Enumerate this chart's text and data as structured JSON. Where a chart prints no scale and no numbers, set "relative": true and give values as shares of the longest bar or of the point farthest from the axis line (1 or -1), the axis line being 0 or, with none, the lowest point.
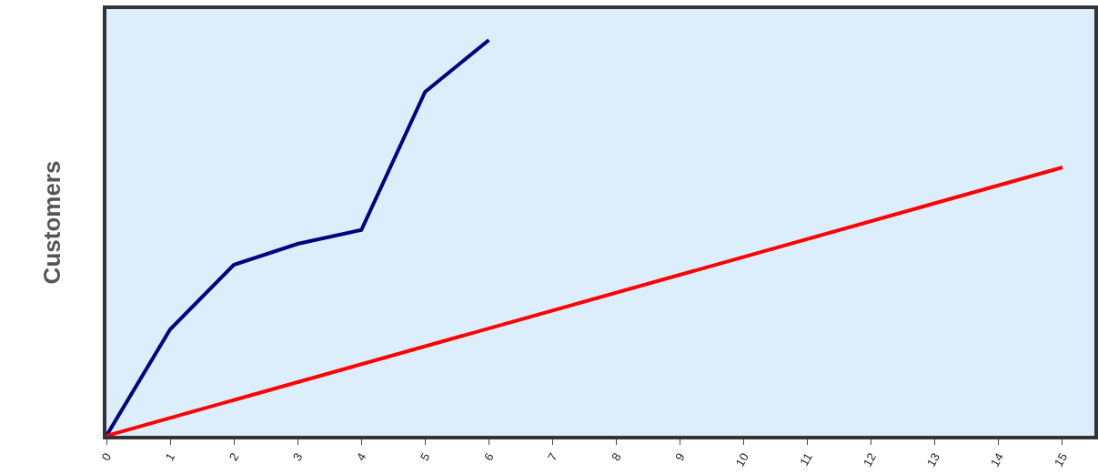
{
  "chart_data": {
    "type": "line",
    "ylabel": "Customers",
    "relative": true,
    "legend": false,
    "grid": false,
    "marker": "none",
    "line_style": "solid",
    "xlim": [
      0,
      15.5
    ],
    "xticks": [
      0,
      1,
      2,
      3,
      4,
      5,
      6,
      7,
      8,
      9,
      10,
      11,
      12,
      13,
      14,
      15
    ],
    "series": [
      {
        "color": "#000080",
        "x": [
          0,
          1,
          2,
          3,
          4,
          5,
          6
        ],
        "values": [
          0,
          0.269,
          0.432,
          0.485,
          0.52,
          0.869,
          1
        ]
      },
      {
        "color": "#ff0000",
        "x": [
          0,
          15
        ],
        "values": [
          0,
          0.678
        ]
      }
    ]
  }
}
